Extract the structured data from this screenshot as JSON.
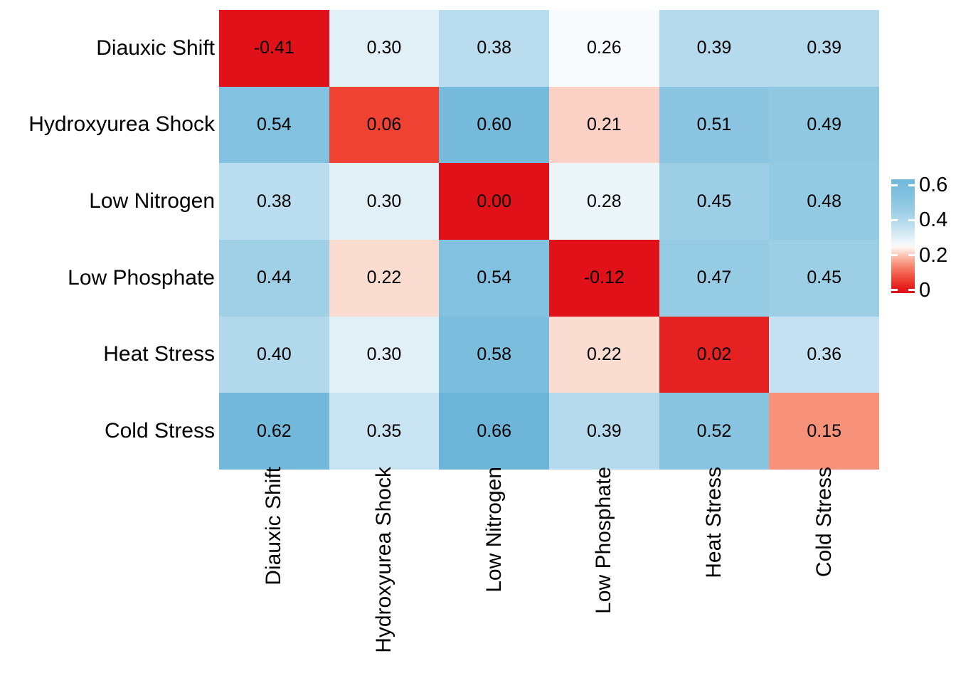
{
  "chart_data": {
    "type": "heatmap",
    "rows": [
      "Diauxic Shift",
      "Hydroxyurea Shock",
      "Low Nitrogen",
      "Low Phosphate",
      "Heat Stress",
      "Cold Stress"
    ],
    "columns": [
      "Diauxic Shift",
      "Hydroxyurea Shock",
      "Low Nitrogen",
      "Low Phosphate",
      "Heat Stress",
      "Cold Stress"
    ],
    "values": [
      [
        -0.41,
        0.3,
        0.38,
        0.26,
        0.39,
        0.39
      ],
      [
        0.54,
        0.06,
        0.6,
        0.21,
        0.51,
        0.49
      ],
      [
        0.38,
        0.3,
        0.0,
        0.28,
        0.45,
        0.48
      ],
      [
        0.44,
        0.22,
        0.54,
        -0.12,
        0.47,
        0.45
      ],
      [
        0.4,
        0.3,
        0.58,
        0.22,
        0.02,
        0.36
      ],
      [
        0.62,
        0.35,
        0.66,
        0.39,
        0.52,
        0.15
      ]
    ],
    "value_decimals": 2,
    "cell_text_color": "#000000",
    "background": "#ffffff",
    "legend_position": "right",
    "colorbar": {
      "tick_labels": [
        "0.6",
        "0.4",
        "0.2",
        "0"
      ],
      "tick_values": [
        0.6,
        0.4,
        0.2,
        0
      ],
      "display_range": [
        -0.018,
        0.634
      ],
      "tick_mark_color": "#ffffff"
    },
    "colormap": {
      "description": "diverging red-white-blue, clamped below 0 and above 0.66",
      "clamp_min": 0.0,
      "clamp_max": 0.66,
      "stops": [
        {
          "v": 0.0,
          "color": "#e01119"
        },
        {
          "v": 0.06,
          "color": "#ef4233"
        },
        {
          "v": 0.15,
          "color": "#f8917a"
        },
        {
          "v": 0.22,
          "color": "#fbdcd1"
        },
        {
          "v": 0.25,
          "color": "#fdfefe"
        },
        {
          "v": 0.3,
          "color": "#e1eff7"
        },
        {
          "v": 0.38,
          "color": "#b9dcee"
        },
        {
          "v": 0.45,
          "color": "#9ccee5"
        },
        {
          "v": 0.54,
          "color": "#82c1df"
        },
        {
          "v": 0.66,
          "color": "#6cb5d9"
        }
      ]
    }
  }
}
